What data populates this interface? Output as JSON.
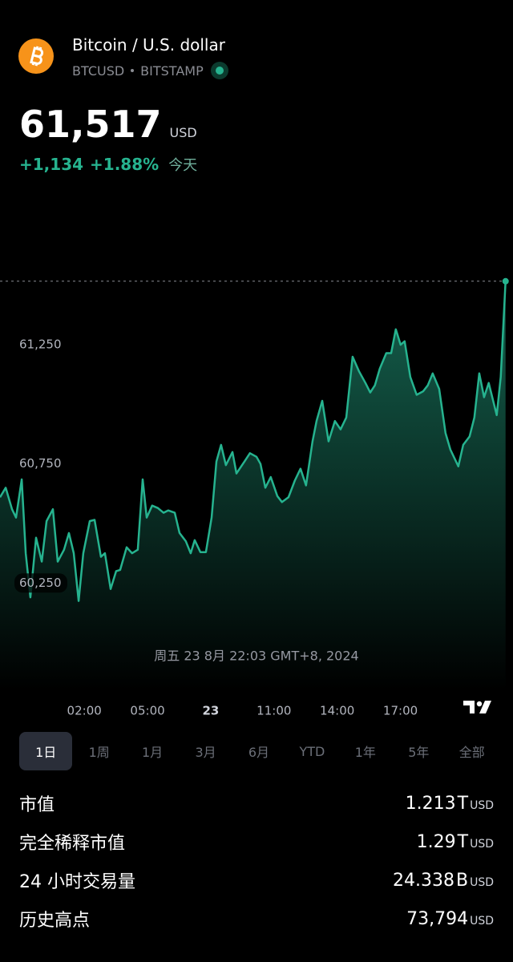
{
  "header": {
    "title": "Bitcoin / U.S. dollar",
    "symbol": "BTCUSD",
    "exchange": "BITSTAMP",
    "price": "61,517",
    "currency": "USD",
    "change": "+1,134",
    "change_percent": "+1.88%",
    "period": "今天"
  },
  "chart_data": {
    "type": "area",
    "color": "#26b38f",
    "grid": false,
    "annotation": "周五 23 8月 22:03 GMT+8, 2024",
    "xlim": [
      -2,
      22
    ],
    "xticks": [
      {
        "value": 2,
        "label": "02:00"
      },
      {
        "value": 5,
        "label": "05:00"
      },
      {
        "value": 8,
        "label": "23"
      },
      {
        "value": 11,
        "label": "11:00"
      },
      {
        "value": 14,
        "label": "14:00"
      },
      {
        "value": 17,
        "label": "17:00"
      }
    ],
    "ylim": [
      59800,
      61900
    ],
    "yticks": [
      {
        "value": 60250,
        "label": "60,250"
      },
      {
        "value": 60750,
        "label": "60,750"
      },
      {
        "value": 61250,
        "label": "61,250"
      }
    ],
    "x": [
      -2,
      -1.73,
      -1.43,
      -1.24,
      -0.97,
      -0.78,
      -0.56,
      -0.29,
      -0.02,
      0.21,
      0.51,
      0.74,
      1.04,
      1.27,
      1.5,
      1.73,
      1.95,
      2.26,
      2.49,
      2.79,
      2.98,
      3.25,
      3.51,
      3.7,
      4.01,
      4.27,
      4.54,
      4.77,
      4.96,
      5.22,
      5.49,
      5.76,
      5.98,
      6.29,
      6.52,
      6.82,
      7.05,
      7.24,
      7.51,
      7.77,
      8.04,
      8.27,
      8.49,
      8.72,
      9.03,
      9.22,
      9.6,
      9.86,
      10.17,
      10.36,
      10.59,
      10.85,
      11.16,
      11.38,
      11.69,
      11.99,
      12.26,
      12.52,
      12.83,
      13.02,
      13.29,
      13.59,
      13.89,
      14.16,
      14.43,
      14.73,
      15.03,
      15.34,
      15.57,
      15.79,
      16.02,
      16.33,
      16.56,
      16.78,
      17.01,
      17.2,
      17.47,
      17.77,
      18.08,
      18.3,
      18.53,
      18.84,
      19.14,
      19.37,
      19.75,
      19.98,
      20.28,
      20.51,
      20.74,
      20.97,
      21.19,
      21.57,
      21.76,
      21.99
    ],
    "values": [
      60610,
      60650,
      60560,
      60525,
      60685,
      60375,
      60190,
      60440,
      60340,
      60510,
      60560,
      60340,
      60390,
      60460,
      60375,
      60175,
      60375,
      60510,
      60515,
      60360,
      60375,
      60225,
      60300,
      60305,
      60400,
      60375,
      60390,
      60685,
      60525,
      60575,
      60565,
      60545,
      60555,
      60545,
      60460,
      60425,
      60375,
      60430,
      60380,
      60380,
      60525,
      60760,
      60830,
      60745,
      60800,
      60710,
      60760,
      60795,
      60780,
      60750,
      60650,
      60695,
      60615,
      60590,
      60610,
      60680,
      60730,
      60660,
      60845,
      60930,
      61015,
      60845,
      60930,
      60895,
      60945,
      61200,
      61140,
      61090,
      61050,
      61080,
      61150,
      61215,
      61215,
      61315,
      61250,
      61265,
      61115,
      61040,
      61055,
      61080,
      61130,
      61065,
      60880,
      60810,
      60740,
      60830,
      60865,
      60945,
      61130,
      61030,
      61090,
      60955,
      61115,
      61517
    ]
  },
  "tabs": [
    {
      "label": "1日",
      "selected": true
    },
    {
      "label": "1周"
    },
    {
      "label": "1月"
    },
    {
      "label": "3月"
    },
    {
      "label": "6月"
    },
    {
      "label": "YTD"
    },
    {
      "label": "1年"
    },
    {
      "label": "5年"
    },
    {
      "label": "全部"
    }
  ],
  "stats": [
    {
      "label": "市值",
      "value": "1.213",
      "suffix": "T",
      "unit": "USD"
    },
    {
      "label": "完全稀释市值",
      "value": "1.29",
      "suffix": "T",
      "unit": "USD"
    },
    {
      "label": "24 小时交易量",
      "value": "24.338",
      "suffix": "B",
      "unit": "USD"
    },
    {
      "label": "历史高点",
      "value": "73,794",
      "unit": "USD"
    }
  ]
}
